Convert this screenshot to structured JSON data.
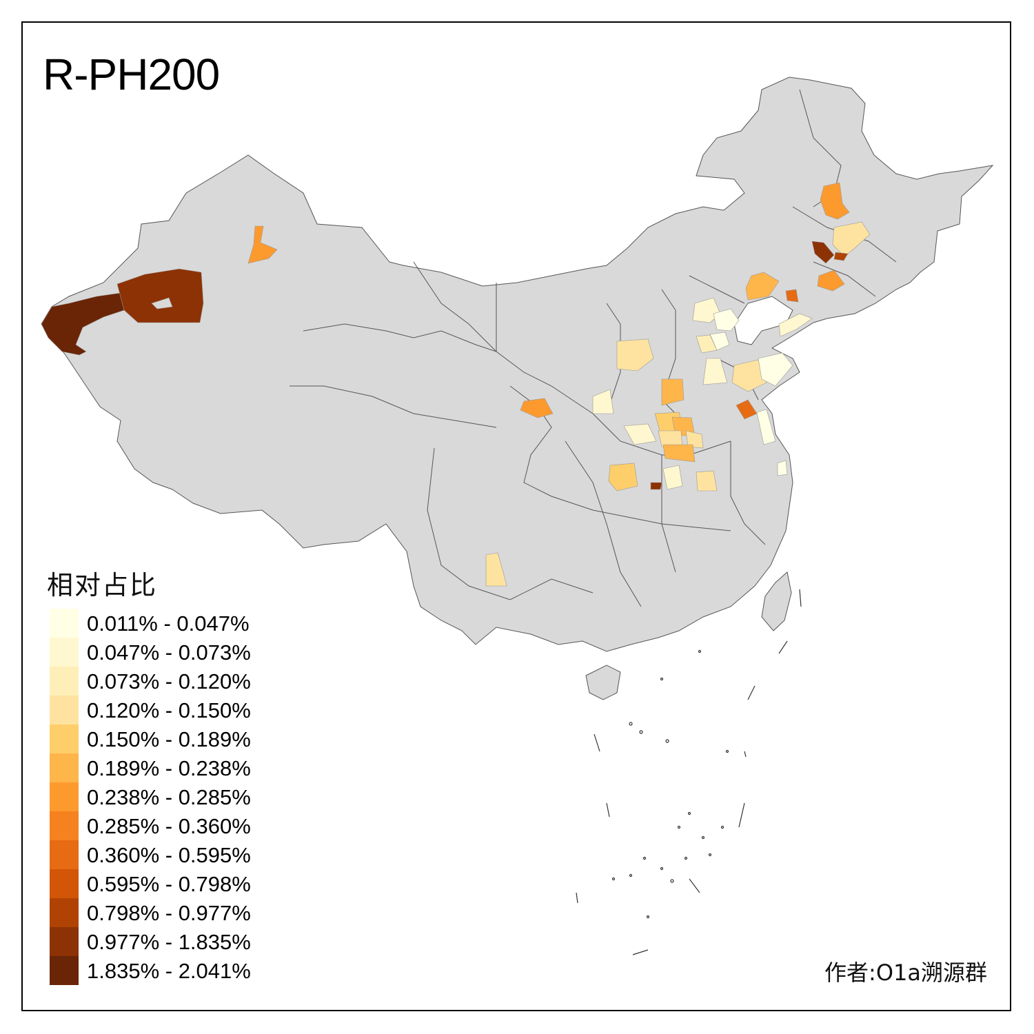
{
  "map": {
    "title": "R-PH200",
    "background_region_color": "#d9d9d9",
    "border_color": "#555555"
  },
  "legend": {
    "title": "相对占比",
    "items": [
      {
        "label": "0.011% - 0.047%",
        "color": "#ffffe5"
      },
      {
        "label": "0.047% - 0.073%",
        "color": "#fff7cf"
      },
      {
        "label": "0.073% - 0.120%",
        "color": "#feefb8"
      },
      {
        "label": "0.120% - 0.150%",
        "color": "#fee3a0"
      },
      {
        "label": "0.150% - 0.189%",
        "color": "#fece6a"
      },
      {
        "label": "0.189% - 0.238%",
        "color": "#feb54a"
      },
      {
        "label": "0.238% - 0.285%",
        "color": "#fd9a2e"
      },
      {
        "label": "0.285% - 0.360%",
        "color": "#f5821e"
      },
      {
        "label": "0.360% - 0.595%",
        "color": "#e76b12"
      },
      {
        "label": "0.595% - 0.798%",
        "color": "#d25508"
      },
      {
        "label": "0.798% - 0.977%",
        "color": "#b04304"
      },
      {
        "label": "0.977% - 1.835%",
        "color": "#8d3204"
      },
      {
        "label": "1.835% - 2.041%",
        "color": "#6a2506"
      }
    ]
  },
  "author": "作者:O1a溯源群"
}
